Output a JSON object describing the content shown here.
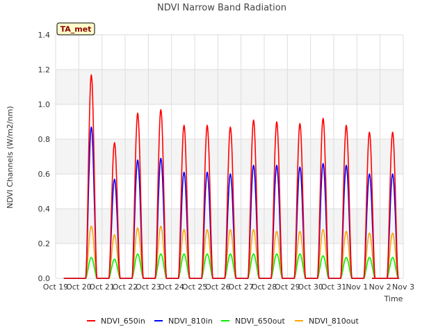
{
  "chart_data": {
    "type": "line",
    "title": "NDVI Narrow Band Radiation",
    "xlabel": "Time",
    "ylabel": "NDVI Channels (W/m2/nm)",
    "annotation": "TA_met",
    "ylim": [
      0.0,
      1.4
    ],
    "yticks": [
      "0.0",
      "0.2",
      "0.4",
      "0.6",
      "0.8",
      "1.0",
      "1.2",
      "1.4"
    ],
    "xlim": [
      "Oct 19",
      "Nov 3"
    ],
    "xticks": [
      "Oct 19",
      "Oct 20",
      "Oct 21",
      "Oct 22",
      "Oct 23",
      "Oct 24",
      "Oct 25",
      "Oct 26",
      "Oct 27",
      "Oct 28",
      "Oct 29",
      "Oct 30",
      "Oct 31",
      "Nov 1",
      "Nov 2",
      "Nov 3"
    ],
    "grid": true,
    "legend_position": "bottom",
    "x_days": [
      "Oct 20",
      "Oct 21",
      "Oct 22",
      "Oct 23",
      "Oct 24",
      "Oct 25",
      "Oct 26",
      "Oct 27",
      "Oct 28",
      "Oct 29",
      "Oct 30",
      "Oct 31",
      "Nov 1",
      "Nov 2"
    ],
    "series": [
      {
        "name": "NDVI_650in",
        "color": "#ff0000",
        "daily_peak": [
          1.17,
          0.78,
          0.95,
          0.97,
          0.88,
          0.88,
          0.87,
          0.91,
          0.9,
          0.89,
          0.92,
          0.88,
          0.84,
          0.84
        ]
      },
      {
        "name": "NDVI_810in",
        "color": "#0000ff",
        "daily_peak": [
          0.87,
          0.57,
          0.68,
          0.69,
          0.61,
          0.61,
          0.6,
          0.65,
          0.65,
          0.64,
          0.66,
          0.65,
          0.6,
          0.6
        ]
      },
      {
        "name": "NDVI_650out",
        "color": "#00ee00",
        "daily_peak": [
          0.12,
          0.11,
          0.14,
          0.14,
          0.14,
          0.14,
          0.14,
          0.14,
          0.14,
          0.14,
          0.13,
          0.12,
          0.12,
          0.12
        ]
      },
      {
        "name": "NDVI_810out",
        "color": "#ffa500",
        "daily_peak": [
          0.3,
          0.25,
          0.29,
          0.3,
          0.28,
          0.28,
          0.28,
          0.28,
          0.27,
          0.27,
          0.28,
          0.27,
          0.26,
          0.26
        ]
      }
    ]
  }
}
